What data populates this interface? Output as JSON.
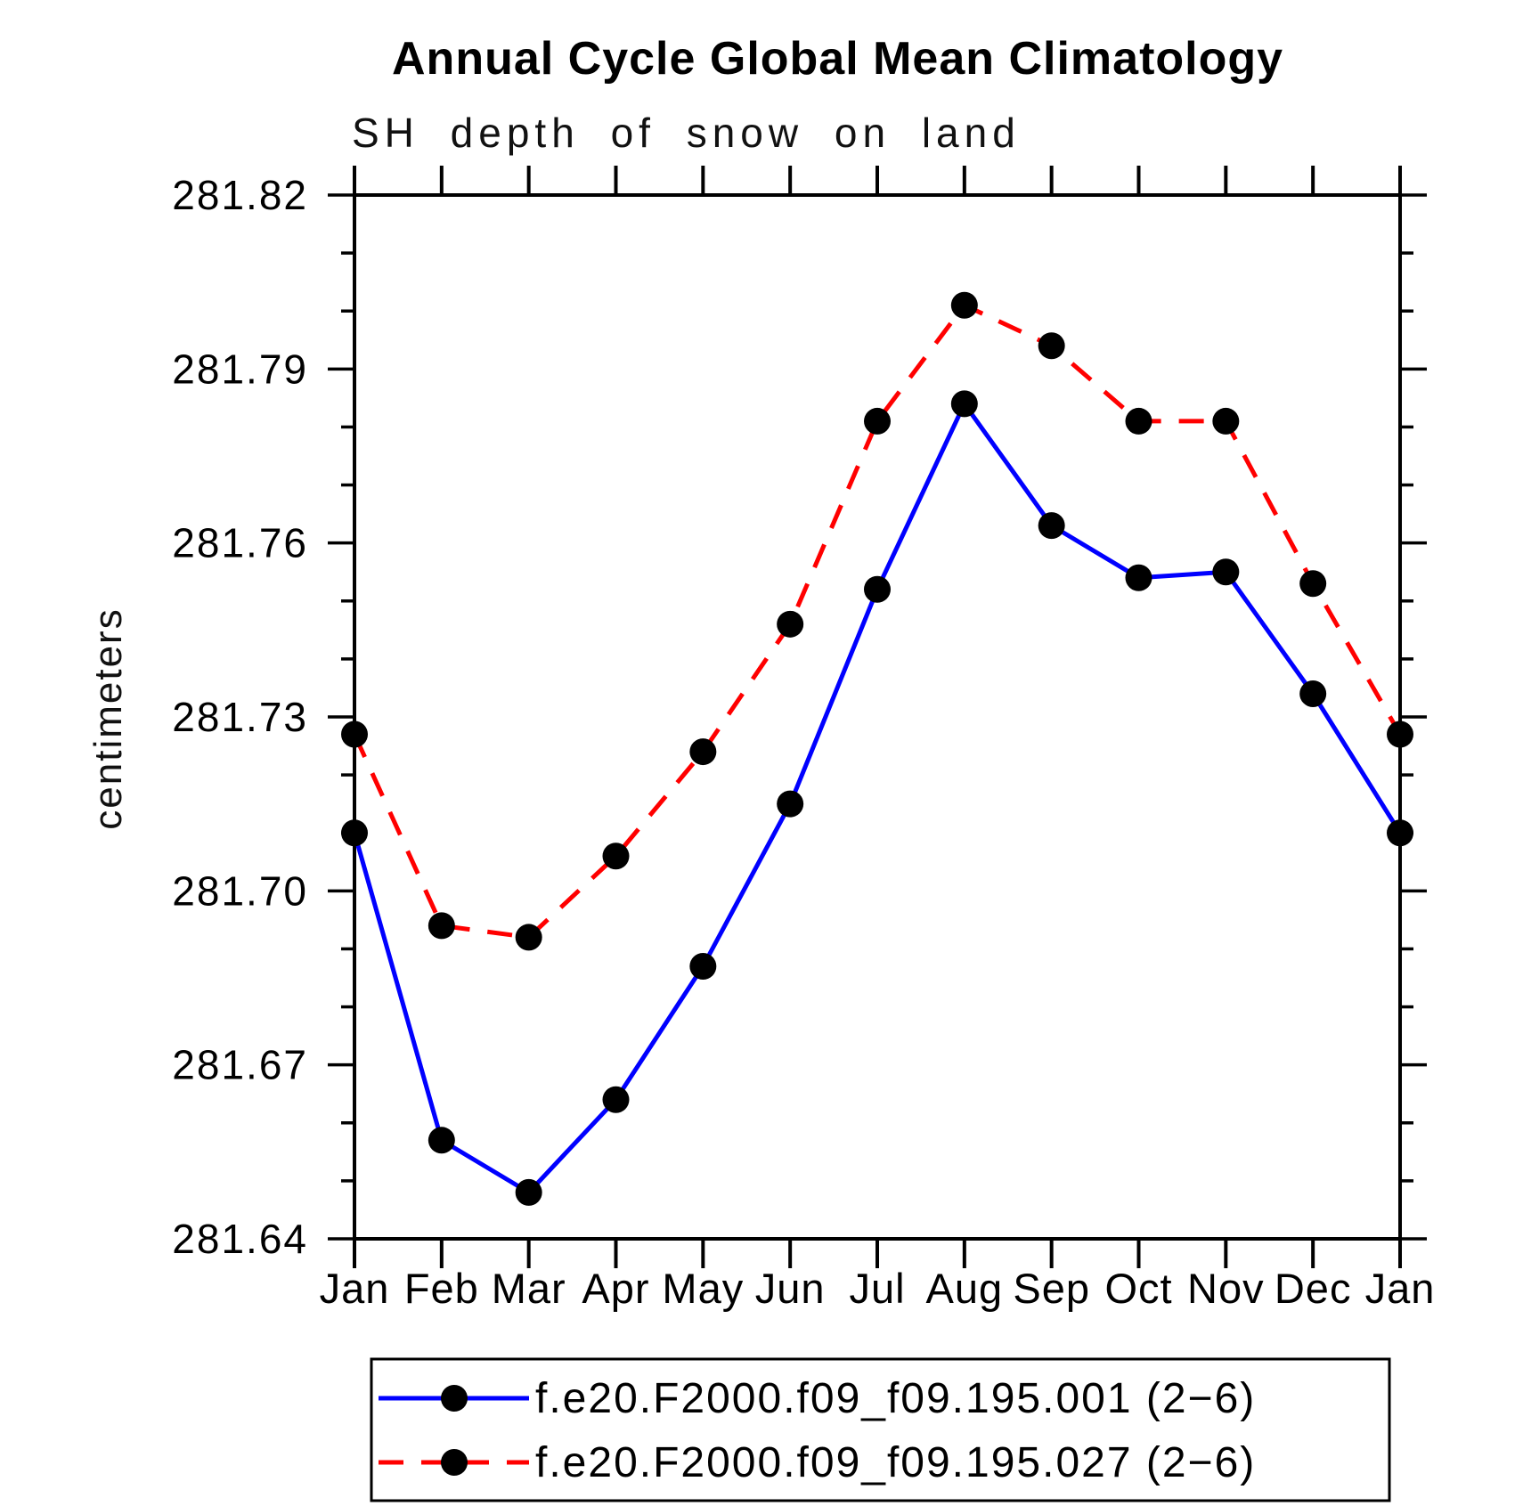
{
  "chart_data": {
    "type": "line",
    "title": "Annual Cycle Global Mean Climatology",
    "subtitle": "SH depth of snow on land",
    "ylabel": "centimeters",
    "x_categories": [
      "Jan",
      "Feb",
      "Mar",
      "Apr",
      "May",
      "Jun",
      "Jul",
      "Aug",
      "Sep",
      "Oct",
      "Nov",
      "Dec",
      "Jan"
    ],
    "ylim": [
      281.64,
      281.82
    ],
    "y_major_step": 0.03,
    "y_minor_step": 0.01,
    "y_tick_decimals": 2,
    "grid": false,
    "legend_position": "bottom",
    "axis_color": "#000000",
    "background_color": "#ffffff",
    "series": [
      {
        "name": "f.e20.F2000.f09_f09.195.001 (2−6)",
        "color": "#0000ff",
        "style": "solid",
        "marker": "circle",
        "marker_color": "#000000",
        "values": [
          281.71,
          281.657,
          281.648,
          281.664,
          281.687,
          281.715,
          281.752,
          281.784,
          281.763,
          281.754,
          281.755,
          281.734,
          281.71
        ]
      },
      {
        "name": "f.e20.F2000.f09_f09.195.027 (2−6)",
        "color": "#ff0000",
        "style": "dashed",
        "marker": "circle",
        "marker_color": "#000000",
        "values": [
          281.727,
          281.694,
          281.692,
          281.706,
          281.724,
          281.746,
          281.781,
          281.801,
          281.794,
          281.781,
          281.781,
          281.753,
          281.727
        ]
      }
    ]
  }
}
